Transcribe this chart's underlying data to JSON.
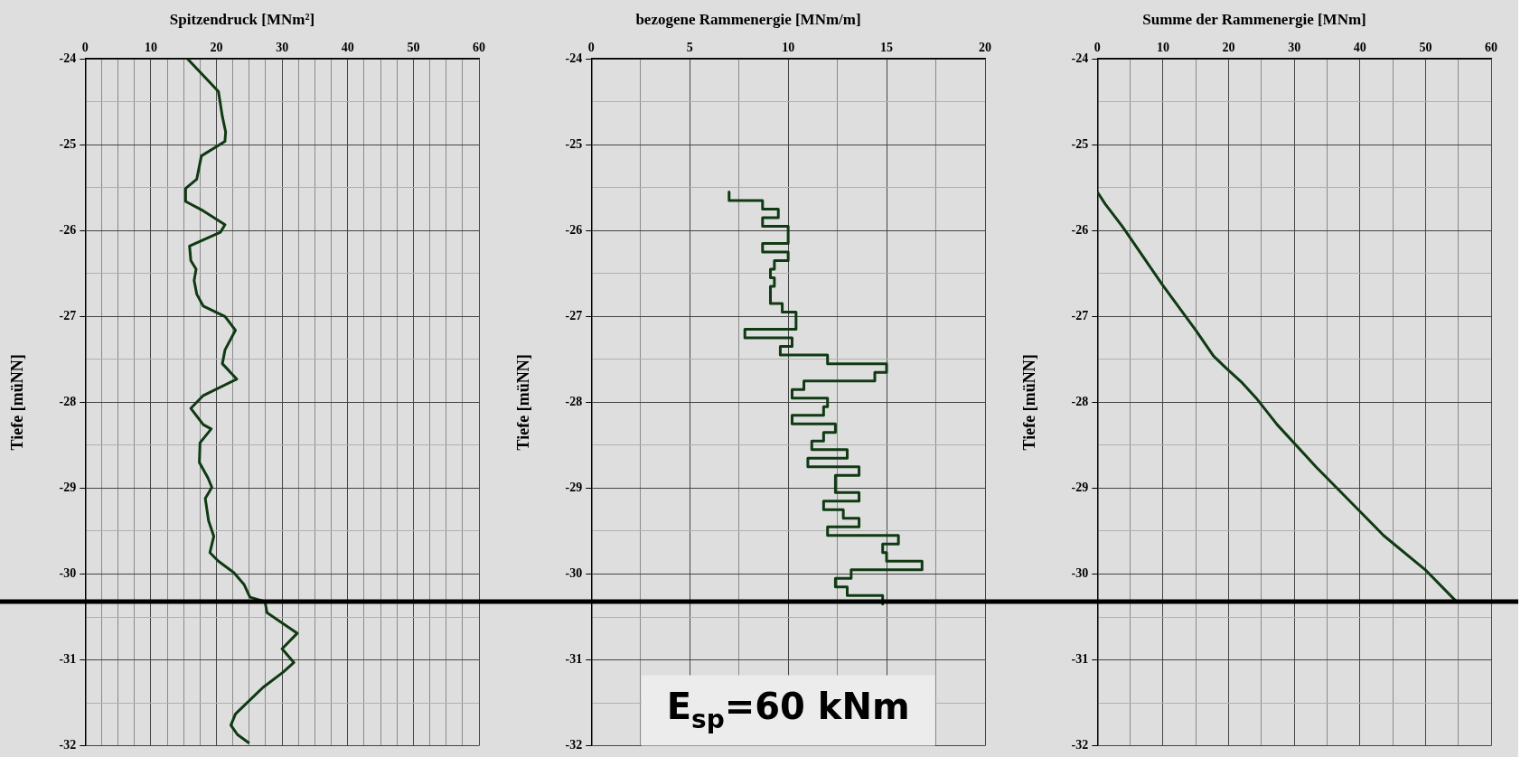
{
  "chart_data": [
    {
      "type": "line",
      "title": "Spitzendruck [MNm²]",
      "ylabel": "Tiefe [müNN]",
      "xlim": [
        0,
        60
      ],
      "ylim": [
        -32,
        -24
      ],
      "grid": true,
      "marker": "none",
      "xticks": [
        0,
        {
          "value": 2.5,
          "label": null
        },
        {
          "value": 5,
          "label": null
        },
        {
          "value": 7.5,
          "label": null
        },
        10,
        {
          "value": 12.5,
          "label": null
        },
        {
          "value": 15,
          "label": null
        },
        {
          "value": 17.5,
          "label": null
        },
        20,
        {
          "value": 22.5,
          "label": null
        },
        {
          "value": 25,
          "label": null
        },
        {
          "value": 27.5,
          "label": null
        },
        30,
        {
          "value": 32.5,
          "label": null
        },
        {
          "value": 35,
          "label": null
        },
        {
          "value": 37.5,
          "label": null
        },
        40,
        {
          "value": 42.5,
          "label": null
        },
        {
          "value": 45,
          "label": null
        },
        {
          "value": 47.5,
          "label": null
        },
        50,
        {
          "value": 52.5,
          "label": null
        },
        {
          "value": 55,
          "label": null
        },
        {
          "value": 57.5,
          "label": null
        },
        60
      ],
      "yticks": [
        -24,
        {
          "value": -24.5,
          "label": null
        },
        -25,
        {
          "value": -25.5,
          "label": null
        },
        -26,
        {
          "value": -26.5,
          "label": null
        },
        -27,
        {
          "value": -27.5,
          "label": null
        },
        -28,
        {
          "value": -28.5,
          "label": null
        },
        -29,
        {
          "value": -29.5,
          "label": null
        },
        -30,
        {
          "value": -30.5,
          "label": null
        },
        -31,
        {
          "value": -31.5,
          "label": null
        },
        -32
      ],
      "ref_lines": [
        {
          "axis": "y",
          "value": -30.32,
          "color": "#000000"
        }
      ],
      "series": [
        {
          "color": "#0f3a12",
          "x": [
            15.6,
            20.3,
            20.9,
            21.4,
            21.3,
            17.7,
            17.0,
            15.3,
            15.3,
            18.0,
            21.3,
            20.6,
            15.9,
            16.1,
            16.9,
            16.6,
            17.0,
            18.0,
            21.3,
            22.9,
            21.3,
            20.9,
            23.1,
            18.0,
            16.1,
            18.0,
            19.2,
            17.5,
            17.4,
            18.7,
            19.3,
            18.3,
            18.8,
            19.6,
            19.0,
            20.3,
            22.6,
            24.2,
            25.1,
            27.4,
            27.7,
            32.3,
            30.0,
            31.8,
            30.2,
            27.1,
            22.9,
            22.2,
            23.2,
            25.0
          ],
          "values": [
            -24.0,
            -24.38,
            -24.67,
            -24.85,
            -24.96,
            -25.13,
            -25.4,
            -25.51,
            -25.66,
            -25.77,
            -25.93,
            -26.02,
            -26.18,
            -26.35,
            -26.45,
            -26.58,
            -26.74,
            -26.88,
            -27.0,
            -27.16,
            -27.39,
            -27.55,
            -27.73,
            -27.92,
            -28.07,
            -28.26,
            -28.31,
            -28.47,
            -28.7,
            -28.88,
            -28.99,
            -29.12,
            -29.38,
            -29.56,
            -29.75,
            -29.85,
            -29.98,
            -30.12,
            -30.27,
            -30.32,
            -30.45,
            -30.69,
            -30.87,
            -31.03,
            -31.14,
            -31.32,
            -31.63,
            -31.76,
            -31.87,
            -31.97
          ]
        }
      ]
    },
    {
      "type": "line",
      "title": "bezogene Rammenergie [MNm/m]",
      "ylabel": "Tiefe [müNN]",
      "xlim": [
        0,
        20
      ],
      "ylim": [
        -32,
        -24
      ],
      "grid": true,
      "marker": "none",
      "xticks": [
        0,
        {
          "value": 2.5,
          "label": null
        },
        5,
        {
          "value": 7.5,
          "label": null
        },
        10,
        {
          "value": 12.5,
          "label": null
        },
        15,
        {
          "value": 17.5,
          "label": null
        },
        20
      ],
      "yticks": [
        -24,
        {
          "value": -24.5,
          "label": null
        },
        -25,
        {
          "value": -25.5,
          "label": null
        },
        -26,
        {
          "value": -26.5,
          "label": null
        },
        -27,
        {
          "value": -27.5,
          "label": null
        },
        -28,
        {
          "value": -28.5,
          "label": null
        },
        -29,
        {
          "value": -29.5,
          "label": null
        },
        -30,
        {
          "value": -30.5,
          "label": null
        },
        -31,
        {
          "value": -31.5,
          "label": null
        },
        -32
      ],
      "ref_lines": [
        {
          "axis": "y",
          "value": -30.32,
          "color": "#000000"
        }
      ],
      "annotations": [
        "E$_{sp}$=60 kNm"
      ],
      "series": [
        {
          "color": "#0f3a12",
          "x": [
            7.0,
            7.0,
            8.7,
            8.7,
            9.5,
            9.5,
            8.7,
            8.7,
            10.0,
            10.0,
            8.7,
            8.7,
            10.0,
            10.0,
            9.3,
            9.3,
            9.1,
            9.1,
            9.3,
            9.3,
            9.1,
            9.1,
            9.7,
            9.7,
            10.4,
            10.4,
            7.8,
            7.8,
            10.2,
            10.2,
            9.6,
            9.6,
            12.0,
            12.0,
            15.0,
            15.0,
            14.4,
            14.4,
            10.8,
            10.8,
            10.2,
            10.2,
            12.0,
            12.0,
            11.8,
            11.8,
            10.2,
            10.2,
            12.4,
            12.4,
            11.8,
            11.8,
            11.2,
            11.2,
            13.0,
            13.0,
            11.0,
            11.0,
            13.6,
            13.6,
            12.4,
            12.4,
            13.6,
            13.6,
            11.8,
            11.8,
            12.8,
            12.8,
            13.6,
            13.6,
            12.0,
            12.0,
            15.6,
            15.6,
            14.8,
            14.8,
            15.0,
            15.0,
            16.8,
            16.8,
            13.2,
            13.2,
            12.4,
            12.4,
            13.0,
            13.0,
            14.8,
            14.8
          ],
          "values": [
            -25.55,
            -25.65,
            -25.65,
            -25.75,
            -25.75,
            -25.85,
            -25.85,
            -25.95,
            -25.95,
            -26.15,
            -26.15,
            -26.25,
            -26.25,
            -26.35,
            -26.35,
            -26.45,
            -26.45,
            -26.55,
            -26.55,
            -26.65,
            -26.65,
            -26.85,
            -26.85,
            -26.95,
            -26.95,
            -27.15,
            -27.15,
            -27.25,
            -27.25,
            -27.35,
            -27.35,
            -27.45,
            -27.45,
            -27.55,
            -27.55,
            -27.65,
            -27.65,
            -27.75,
            -27.75,
            -27.85,
            -27.85,
            -27.95,
            -27.95,
            -28.05,
            -28.05,
            -28.15,
            -28.15,
            -28.25,
            -28.25,
            -28.35,
            -28.35,
            -28.45,
            -28.45,
            -28.55,
            -28.55,
            -28.65,
            -28.65,
            -28.75,
            -28.75,
            -28.85,
            -28.85,
            -29.05,
            -29.05,
            -29.15,
            -29.15,
            -29.25,
            -29.25,
            -29.35,
            -29.35,
            -29.45,
            -29.45,
            -29.55,
            -29.55,
            -29.65,
            -29.65,
            -29.75,
            -29.75,
            -29.85,
            -29.85,
            -29.95,
            -29.95,
            -30.05,
            -30.05,
            -30.15,
            -30.15,
            -30.25,
            -30.25,
            -30.35
          ]
        }
      ]
    },
    {
      "type": "line",
      "title": "Summe der Rammenergie [MNm]",
      "ylabel": "Tiefe [müNN]",
      "xlim": [
        0,
        60
      ],
      "ylim": [
        -32,
        -24
      ],
      "grid": true,
      "marker": "none",
      "xticks": [
        0,
        {
          "value": 5,
          "label": null
        },
        10,
        {
          "value": 15,
          "label": null
        },
        20,
        {
          "value": 25,
          "label": null
        },
        30,
        {
          "value": 35,
          "label": null
        },
        40,
        {
          "value": 45,
          "label": null
        },
        50,
        {
          "value": 55,
          "label": null
        },
        60
      ],
      "yticks": [
        -24,
        {
          "value": -24.5,
          "label": null
        },
        -25,
        {
          "value": -25.5,
          "label": null
        },
        -26,
        {
          "value": -26.5,
          "label": null
        },
        -27,
        {
          "value": -27.5,
          "label": null
        },
        -28,
        {
          "value": -28.5,
          "label": null
        },
        -29,
        {
          "value": -29.5,
          "label": null
        },
        -30,
        {
          "value": -30.5,
          "label": null
        },
        -31,
        {
          "value": -31.5,
          "label": null
        },
        -32
      ],
      "ref_lines": [
        {
          "axis": "y",
          "value": -30.32,
          "color": "#000000"
        }
      ],
      "series": [
        {
          "color": "#0f3a12",
          "x": [
            0,
            1.2,
            3.8,
            9.9,
            15.0,
            17.7,
            19.6,
            21.9,
            24.2,
            27.4,
            33.3,
            40.4,
            43.6,
            50.1,
            54.7
          ],
          "values": [
            -25.55,
            -25.69,
            -25.95,
            -26.63,
            -27.16,
            -27.46,
            -27.6,
            -27.76,
            -27.95,
            -28.26,
            -28.75,
            -29.3,
            -29.55,
            -29.96,
            -30.32
          ]
        }
      ]
    }
  ]
}
